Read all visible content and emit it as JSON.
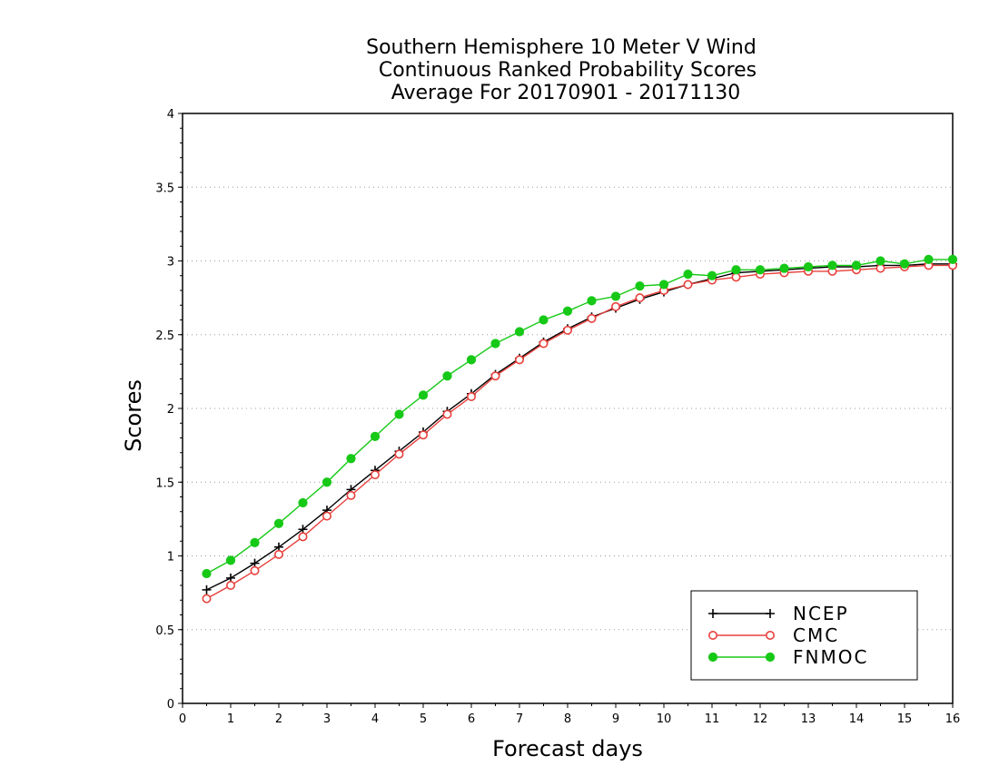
{
  "chart_data": {
    "type": "line",
    "title": [
      "Southern Hemisphere 10 Meter V Wind",
      "Continuous Ranked Probability Scores",
      "Average For 20170901 - 20171130"
    ],
    "xlabel": "Forecast days",
    "ylabel": "Scores",
    "xlim": [
      0,
      16
    ],
    "ylim": [
      0,
      4
    ],
    "xticks": [
      "0",
      "1",
      "2",
      "3",
      "4",
      "5",
      "6",
      "7",
      "8",
      "9",
      "10",
      "11",
      "12",
      "13",
      "14",
      "15",
      "16"
    ],
    "yticks": [
      "0",
      "0.5",
      "1",
      "1.5",
      "2",
      "2.5",
      "3",
      "3.5",
      "4"
    ],
    "grid": "horizontal dotted",
    "legend_position": "bottom-right",
    "x": [
      0.5,
      1,
      1.5,
      2,
      2.5,
      3,
      3.5,
      4,
      4.5,
      5,
      5.5,
      6,
      6.5,
      7,
      7.5,
      8,
      8.5,
      9,
      9.5,
      10,
      10.5,
      11,
      11.5,
      12,
      12.5,
      13,
      13.5,
      14,
      14.5,
      15,
      15.5,
      16
    ],
    "series": [
      {
        "name": "NCEP",
        "color": "#000000",
        "marker": "plus",
        "values": [
          0.77,
          0.85,
          0.95,
          1.06,
          1.18,
          1.31,
          1.45,
          1.58,
          1.71,
          1.84,
          1.98,
          2.1,
          2.23,
          2.34,
          2.45,
          2.54,
          2.62,
          2.68,
          2.74,
          2.79,
          2.84,
          2.88,
          2.92,
          2.93,
          2.94,
          2.95,
          2.96,
          2.96,
          2.97,
          2.97,
          2.98,
          2.98
        ]
      },
      {
        "name": "CMC",
        "color": "#e8403c",
        "marker": "open-circle",
        "values": [
          0.71,
          0.8,
          0.9,
          1.01,
          1.13,
          1.27,
          1.41,
          1.55,
          1.69,
          1.82,
          1.96,
          2.08,
          2.22,
          2.33,
          2.44,
          2.53,
          2.61,
          2.69,
          2.75,
          2.8,
          2.84,
          2.87,
          2.89,
          2.91,
          2.92,
          2.93,
          2.93,
          2.94,
          2.95,
          2.96,
          2.97,
          2.97
        ]
      },
      {
        "name": "FNMOC",
        "color": "#17c917",
        "marker": "filled-circle",
        "values": [
          0.88,
          0.97,
          1.09,
          1.22,
          1.36,
          1.5,
          1.66,
          1.81,
          1.96,
          2.09,
          2.22,
          2.33,
          2.44,
          2.52,
          2.6,
          2.66,
          2.73,
          2.76,
          2.83,
          2.84,
          2.91,
          2.9,
          2.94,
          2.94,
          2.95,
          2.96,
          2.97,
          2.97,
          3.0,
          2.98,
          3.01,
          3.01
        ]
      }
    ]
  }
}
